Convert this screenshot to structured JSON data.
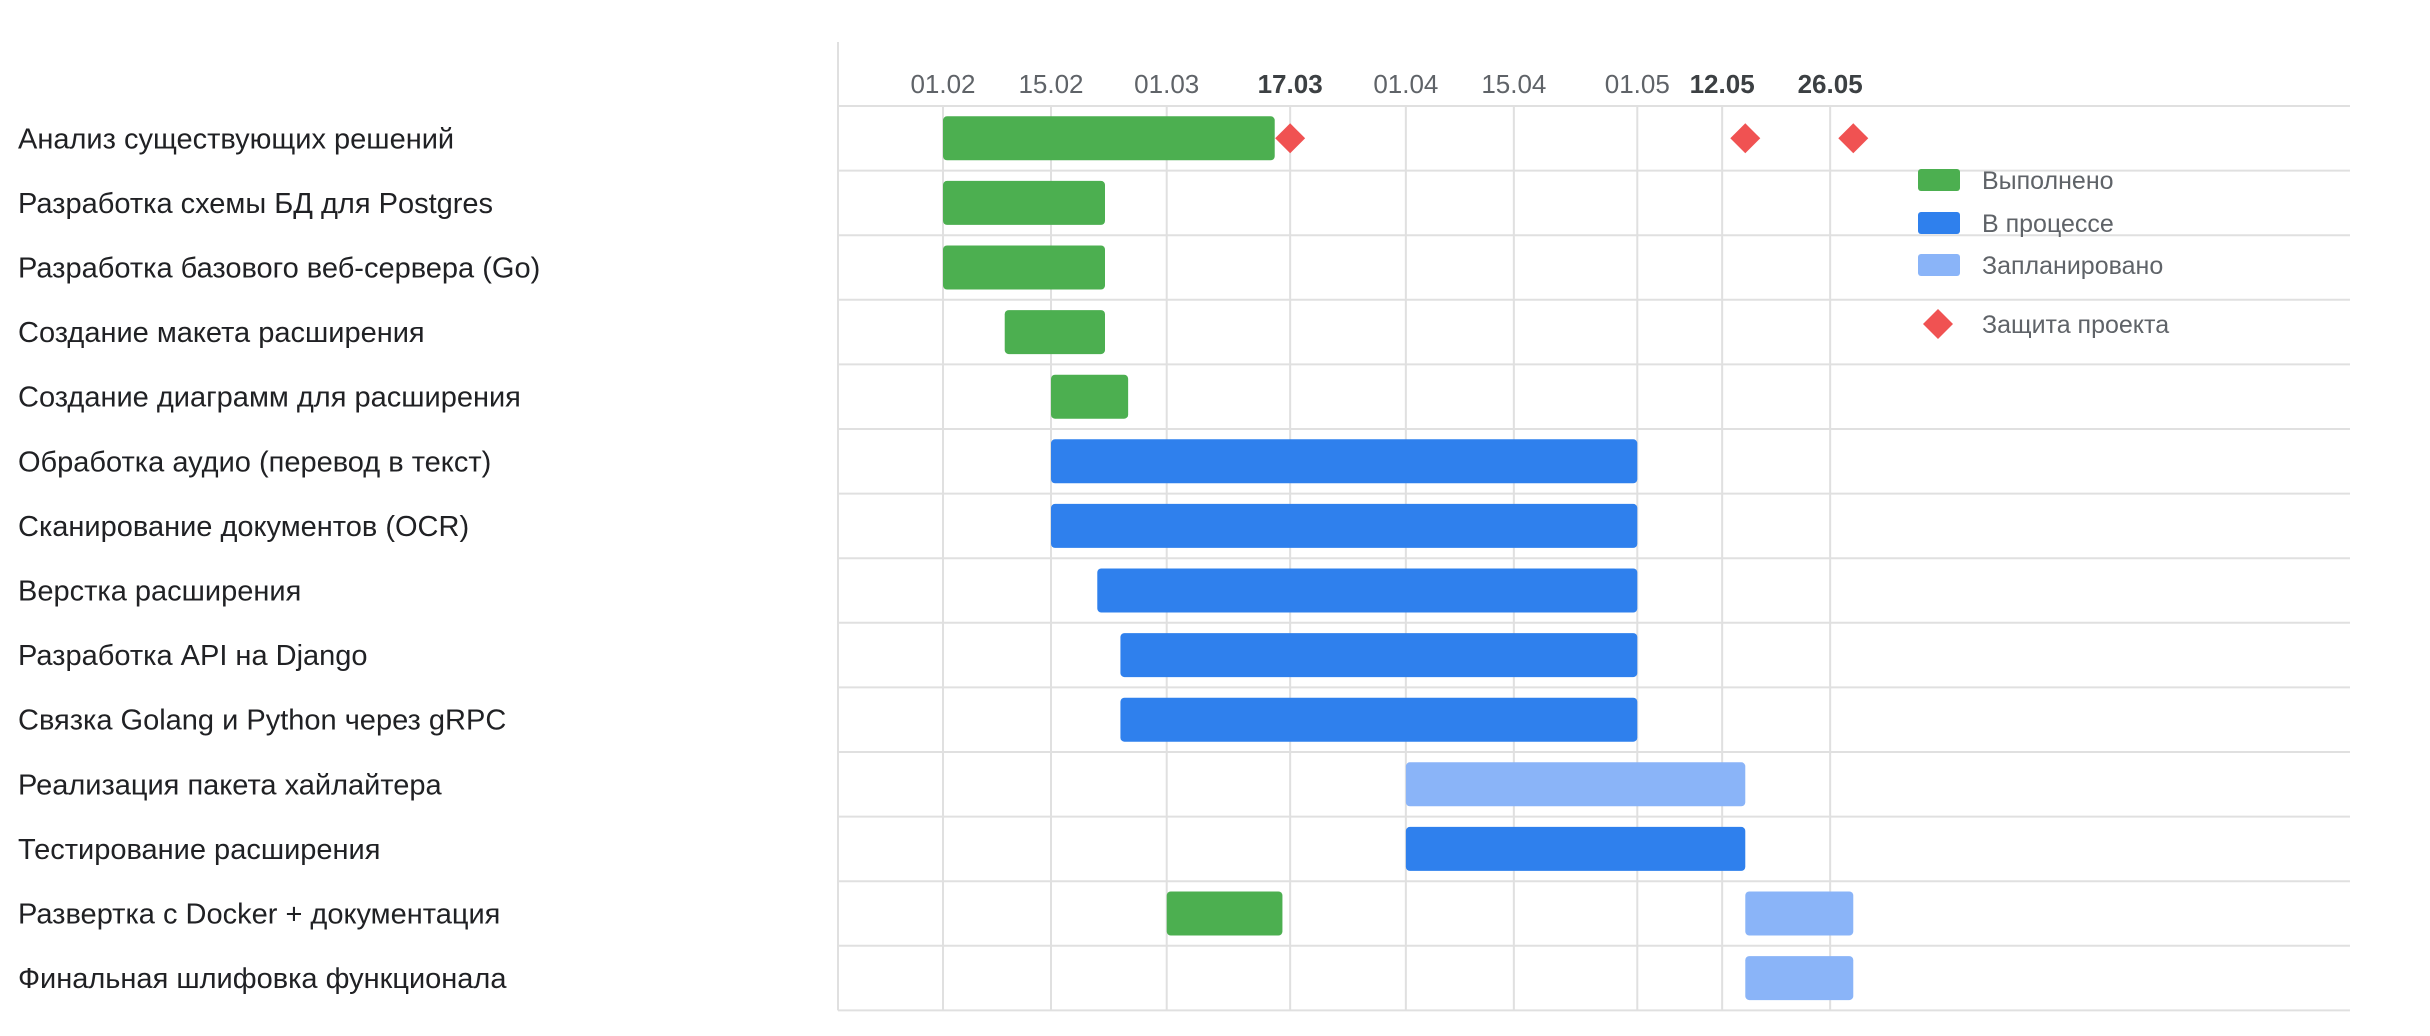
{
  "chart_data": {
    "type": "gantt",
    "x_start": "2024-01-31",
    "x_end": "2024-07-10",
    "tick_labels": [
      {
        "date": "2024-02-01",
        "label": "01.02",
        "bold": false
      },
      {
        "date": "2024-02-15",
        "label": "15.02",
        "bold": false
      },
      {
        "date": "2024-03-01",
        "label": "01.03",
        "bold": false
      },
      {
        "date": "2024-03-17",
        "label": "17.03",
        "bold": true
      },
      {
        "date": "2024-04-01",
        "label": "01.04",
        "bold": false
      },
      {
        "date": "2024-04-15",
        "label": "15.04",
        "bold": false
      },
      {
        "date": "2024-05-01",
        "label": "01.05",
        "bold": false
      },
      {
        "date": "2024-05-12",
        "label": "12.05",
        "bold": true
      },
      {
        "date": "2024-05-26",
        "label": "26.05",
        "bold": true
      }
    ],
    "gridline_dates": [
      "2024-02-01",
      "2024-02-15",
      "2024-03-01",
      "2024-03-17",
      "2024-04-01",
      "2024-04-15",
      "2024-05-01",
      "2024-05-12",
      "2024-05-26"
    ],
    "tasks": [
      {
        "name": "Анализ существующих решений",
        "bars": [
          {
            "start": "2024-02-01",
            "end": "2024-03-15",
            "status": "done"
          }
        ]
      },
      {
        "name": "Разработка схемы БД для Postgres",
        "bars": [
          {
            "start": "2024-02-01",
            "end": "2024-02-22",
            "status": "done"
          }
        ]
      },
      {
        "name": "Разработка базового веб-сервера (Go)",
        "bars": [
          {
            "start": "2024-02-01",
            "end": "2024-02-22",
            "status": "done"
          }
        ]
      },
      {
        "name": "Создание макета расширения",
        "bars": [
          {
            "start": "2024-02-09",
            "end": "2024-02-22",
            "status": "done"
          }
        ]
      },
      {
        "name": "Создание диаграмм для расширения",
        "bars": [
          {
            "start": "2024-02-15",
            "end": "2024-02-25",
            "status": "done"
          }
        ]
      },
      {
        "name": "Обработка аудио (перевод в текст)",
        "bars": [
          {
            "start": "2024-02-15",
            "end": "2024-05-01",
            "status": "in_progress"
          }
        ]
      },
      {
        "name": "Сканирование документов (OCR)",
        "bars": [
          {
            "start": "2024-02-15",
            "end": "2024-05-01",
            "status": "in_progress"
          }
        ]
      },
      {
        "name": "Верстка расширения",
        "bars": [
          {
            "start": "2024-02-21",
            "end": "2024-05-01",
            "status": "in_progress"
          }
        ]
      },
      {
        "name": "Разработка API на Django",
        "bars": [
          {
            "start": "2024-02-24",
            "end": "2024-05-01",
            "status": "in_progress"
          }
        ]
      },
      {
        "name": "Связка Golang и Python через gRPC",
        "bars": [
          {
            "start": "2024-02-24",
            "end": "2024-05-01",
            "status": "in_progress"
          }
        ]
      },
      {
        "name": "Реализация пакета хайлайтера",
        "bars": [
          {
            "start": "2024-04-01",
            "end": "2024-05-15",
            "status": "planned"
          }
        ]
      },
      {
        "name": "Тестирование расширения",
        "bars": [
          {
            "start": "2024-04-01",
            "end": "2024-05-15",
            "status": "in_progress"
          }
        ]
      },
      {
        "name": "Развертка с Docker + документация",
        "bars": [
          {
            "start": "2024-03-01",
            "end": "2024-03-16",
            "status": "done"
          },
          {
            "start": "2024-05-15",
            "end": "2024-05-29",
            "status": "planned"
          }
        ]
      },
      {
        "name": "Финальная шлифовка функционала",
        "bars": [
          {
            "start": "2024-05-15",
            "end": "2024-05-29",
            "status": "planned"
          }
        ]
      }
    ],
    "milestones": [
      {
        "date": "2024-03-17",
        "row": 0
      },
      {
        "date": "2024-05-15",
        "row": 0
      },
      {
        "date": "2024-05-29",
        "row": 0
      }
    ],
    "legend": {
      "placement": "top-right",
      "items": [
        {
          "key": "done",
          "label": "Выполнено",
          "shape": "bar",
          "color": "#4caf50"
        },
        {
          "key": "in_progress",
          "label": "В процессе",
          "shape": "bar",
          "color": "#2f80ed"
        },
        {
          "key": "planned",
          "label": "Запланировано",
          "shape": "bar",
          "color": "#8ab4f8"
        },
        {
          "key": "milestone",
          "label": "Защита проекта",
          "shape": "diamond",
          "color": "#f05252"
        }
      ]
    },
    "colors": {
      "done": "#4caf50",
      "in_progress": "#2f80ed",
      "planned": "#8ab4f8",
      "milestone": "#f05252",
      "grid": "#e0e0e0",
      "tick_text": "#5f6368",
      "label_text": "#202124"
    },
    "grid": true
  }
}
